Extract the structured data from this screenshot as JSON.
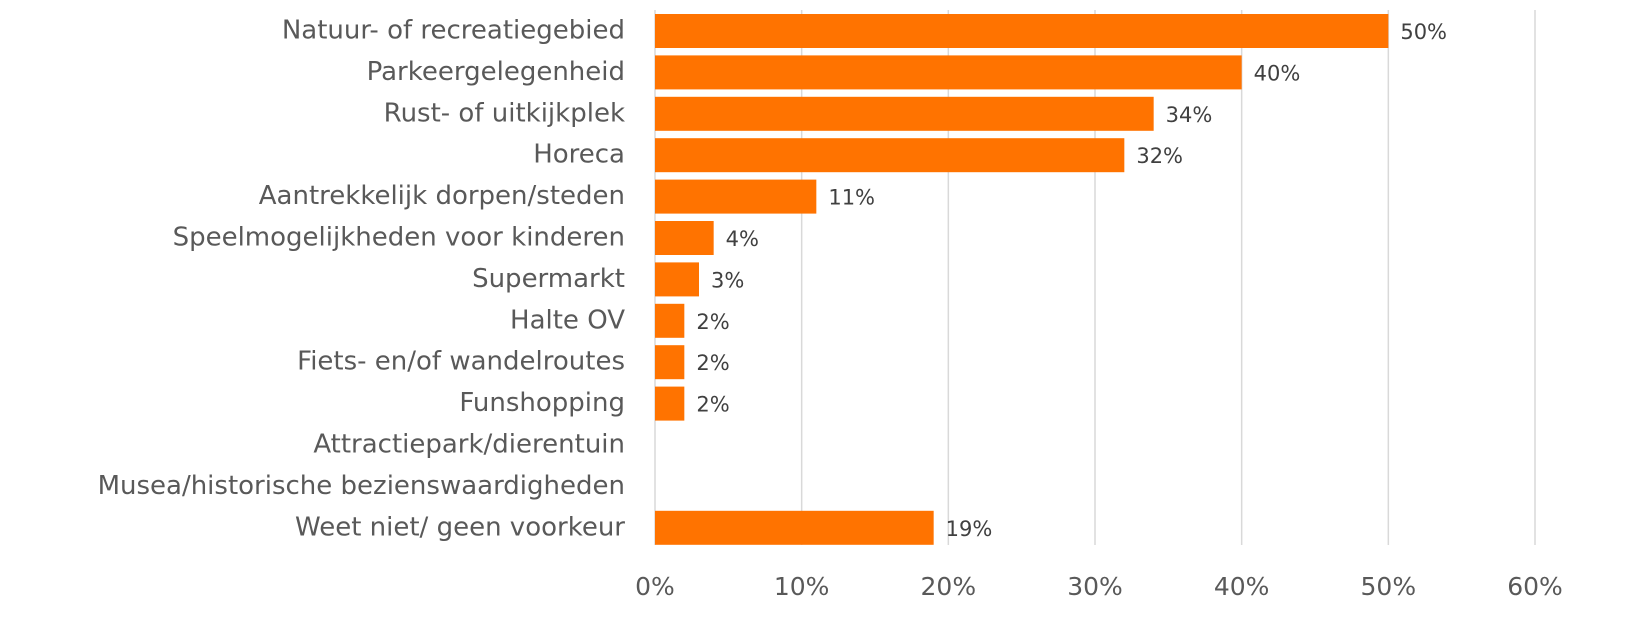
{
  "chart_data": {
    "type": "bar",
    "orientation": "horizontal",
    "categories": [
      "Natuur- of recreatiegebied",
      "Parkeergelegenheid",
      "Rust- of uitkijkplek",
      "Horeca",
      "Aantrekkelijk dorpen/steden",
      "Speelmogelijkheden voor kinderen",
      "Supermarkt",
      "Halte OV",
      "Fiets- en/of wandelroutes",
      "Funshopping",
      "Attractiepark/dierentuin",
      "Musea/historische bezienswaardigheden",
      "Weet niet/ geen voorkeur"
    ],
    "values": [
      50,
      40,
      34,
      32,
      11,
      4,
      3,
      2,
      2,
      2,
      null,
      null,
      19
    ],
    "value_labels": [
      "50%",
      "40%",
      "34%",
      "32%",
      "11%",
      "4%",
      "3%",
      "2%",
      "2%",
      "2%",
      null,
      null,
      "19%"
    ],
    "color": "#ff7300",
    "xlim": [
      0,
      60
    ],
    "xticks": [
      {
        "value": 0,
        "label": "0%"
      },
      {
        "value": 10,
        "label": "10%"
      },
      {
        "value": 20,
        "label": "20%"
      },
      {
        "value": 30,
        "label": "30%"
      },
      {
        "value": 40,
        "label": "40%"
      },
      {
        "value": 50,
        "label": "50%"
      },
      {
        "value": 60,
        "label": "60%"
      }
    ],
    "grid": true
  }
}
